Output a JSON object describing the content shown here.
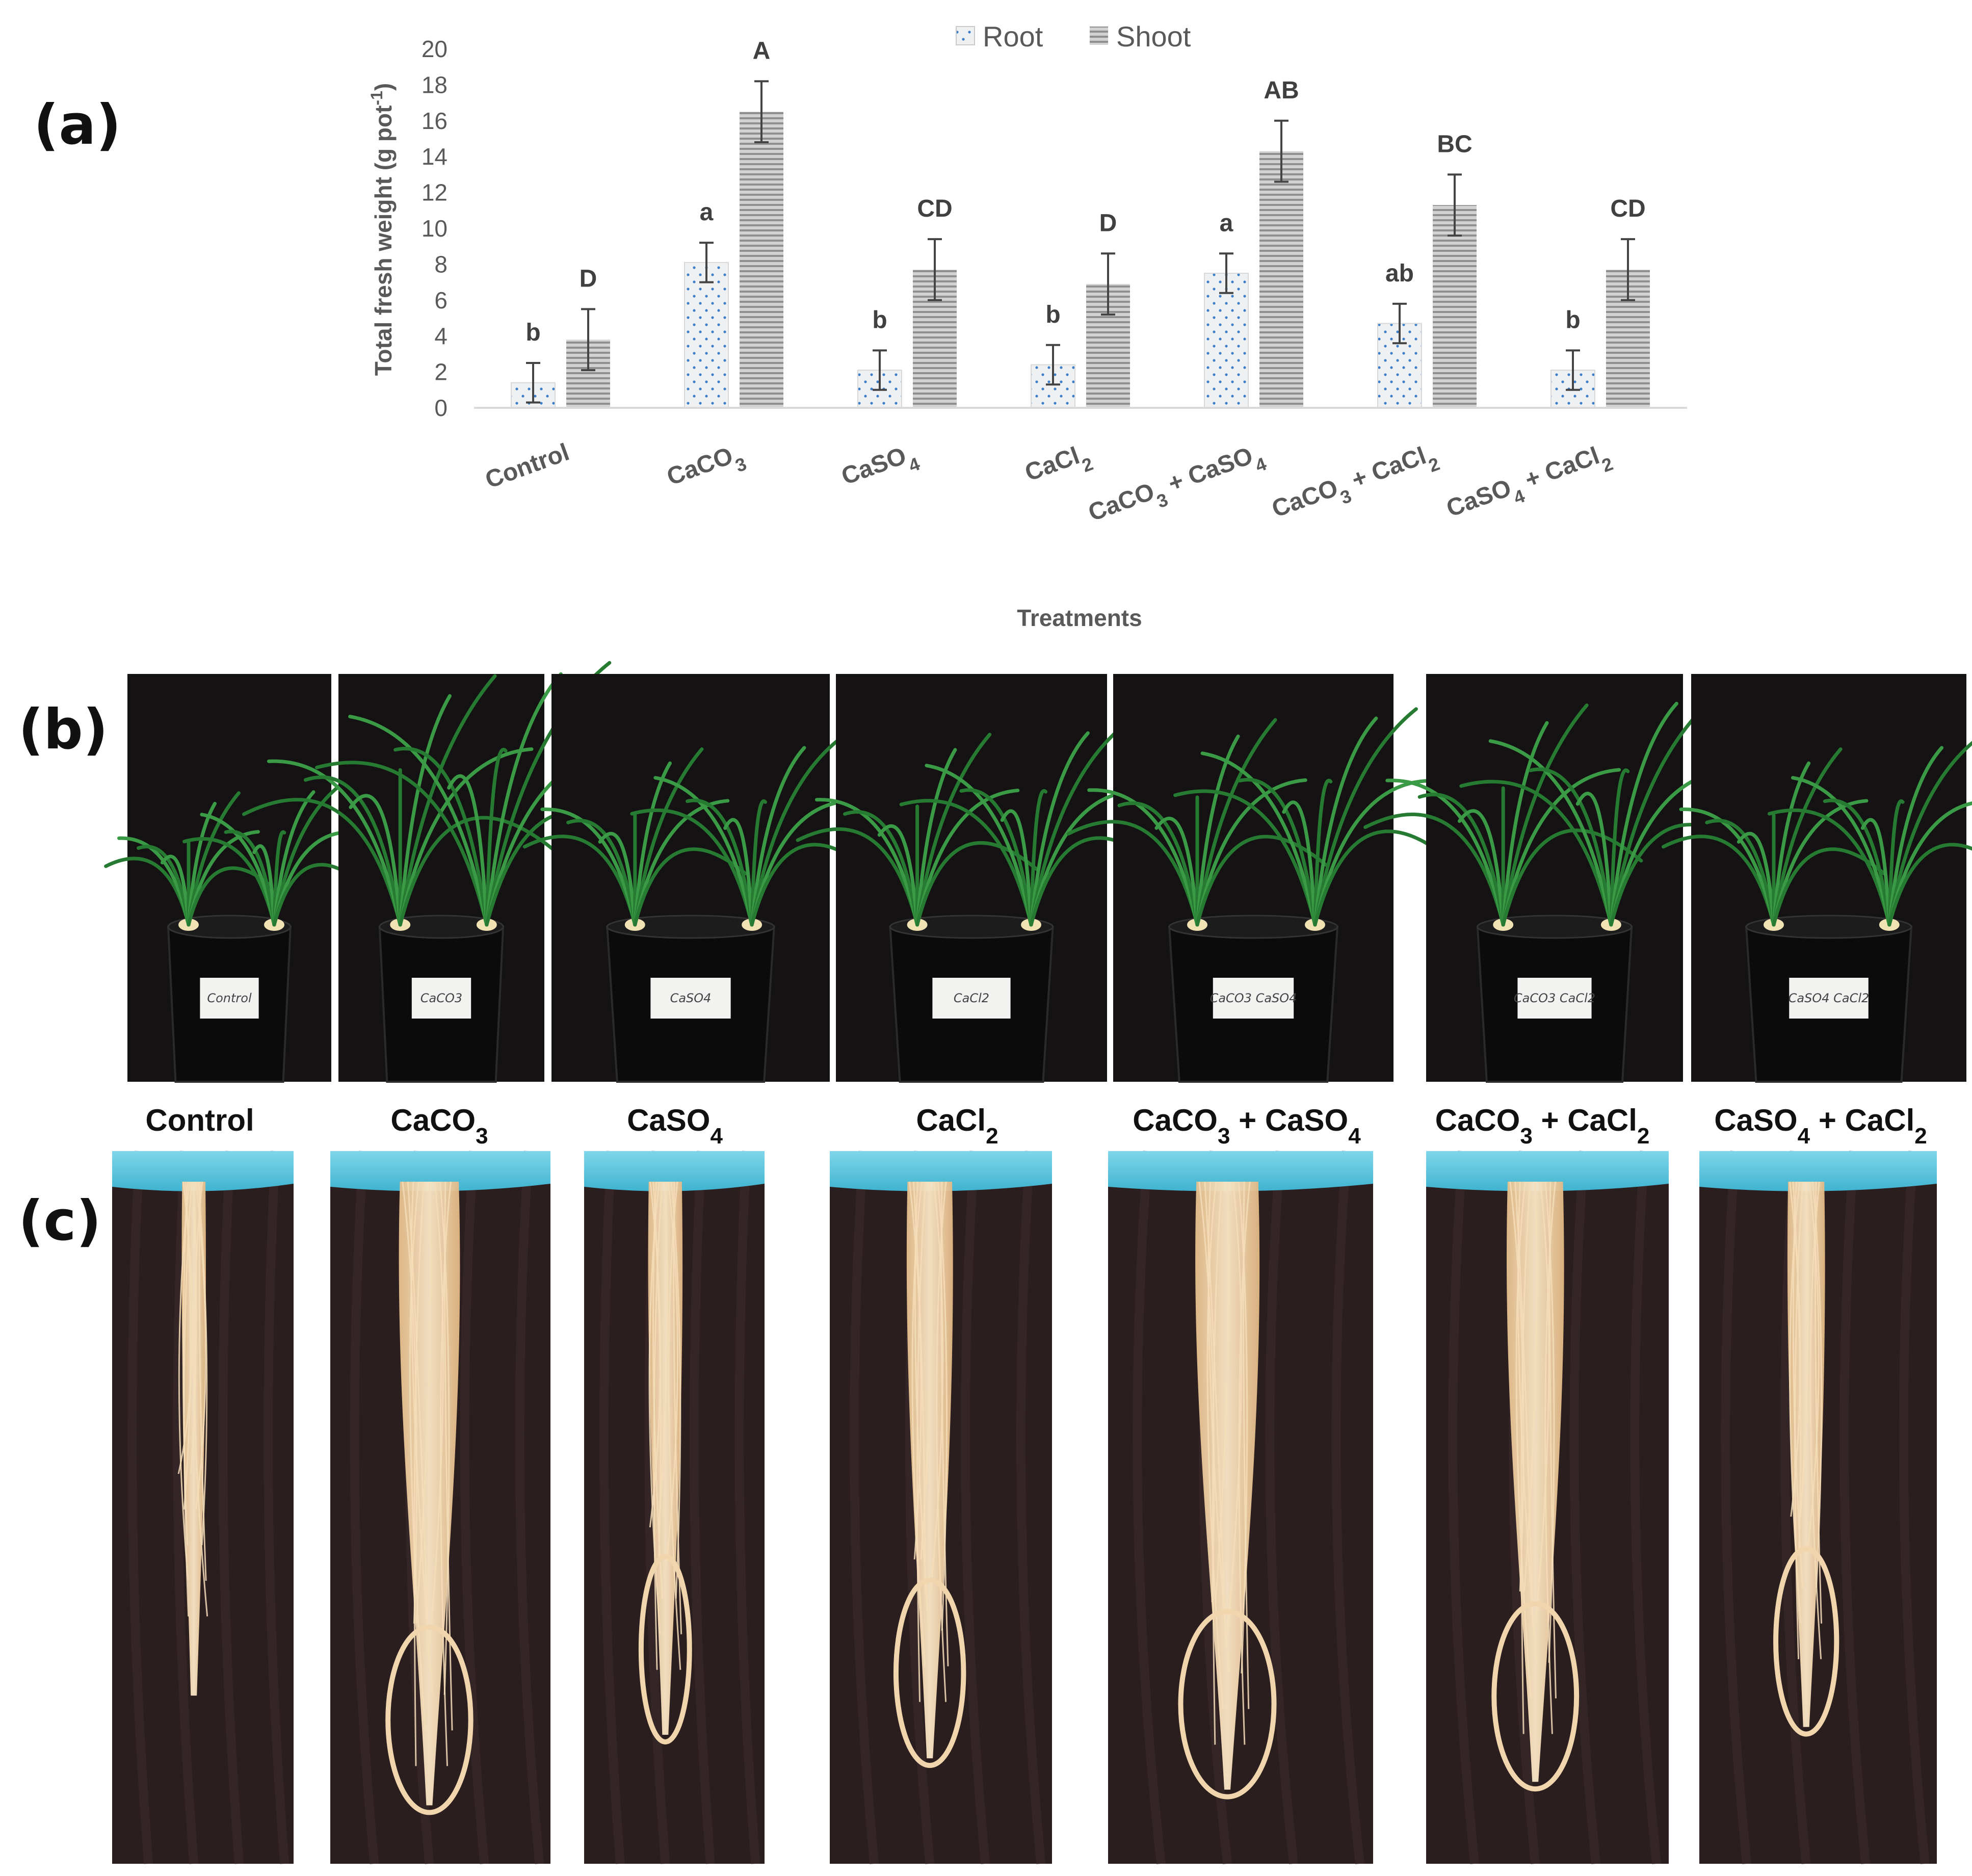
{
  "panels": {
    "a": "(a)",
    "b": "(b)",
    "c": "(c)"
  },
  "legend": {
    "root": "Root",
    "shoot": "Shoot"
  },
  "axis": {
    "ylabel_main": "Total fresh weight (g pot",
    "ylabel_sup": "-1",
    "ylabel_end": ")",
    "xlabel": "Treatments"
  },
  "categories": [
    {
      "base": "Control"
    },
    {
      "base": "CaCO",
      "sub": "3"
    },
    {
      "base": "CaSO",
      "sub": "4"
    },
    {
      "base": "CaCl",
      "sub": "2"
    },
    {
      "base": "CaCO",
      "sub": "3",
      "base2": " + CaSO",
      "sub2": "4"
    },
    {
      "base": "CaCO",
      "sub": "3",
      "base2": " + CaCl",
      "sub2": "2"
    },
    {
      "base": "CaSO",
      "sub": "4",
      "base2": " + CaCl",
      "sub2": "2"
    }
  ],
  "colors": {
    "root_fill": "#eef0f2",
    "root_dots": "#3a7fc8",
    "shoot_fill": "#c8c8c8",
    "shoot_stripe": "#8a8a8a",
    "axis": "#d9d9d9",
    "error_bar": "#444444",
    "photo_bg": "#141212",
    "root_photo_bg": "#2a1d1d",
    "tray_blue": "#5ec8e0",
    "root_color": "#f0d2a6",
    "leaf_green": "#2f8a3a",
    "pot_black": "#0e0e0e"
  },
  "chart_data": {
    "type": "bar",
    "title": "",
    "xlabel": "Treatments",
    "ylabel": "Total fresh weight (g pot-1)",
    "ylim": [
      0,
      20
    ],
    "yticks": [
      0,
      2,
      4,
      6,
      8,
      10,
      12,
      14,
      16,
      18,
      20
    ],
    "legend_position": "top-center",
    "grid": false,
    "categories": [
      "Control",
      "CaCO3",
      "CaSO4",
      "CaCl2",
      "CaCO3 + CaSO4",
      "CaCO3 + CaCl2",
      "CaSO4 + CaCl2"
    ],
    "series": [
      {
        "name": "Root",
        "values": [
          1.4,
          8.1,
          2.1,
          2.4,
          7.5,
          4.7,
          2.1
        ],
        "errors": [
          1.1,
          1.1,
          1.1,
          1.1,
          1.1,
          1.1,
          1.1
        ],
        "letters": [
          "b",
          "a",
          "b",
          "b",
          "a",
          "ab",
          "b"
        ]
      },
      {
        "name": "Shoot",
        "values": [
          3.8,
          16.5,
          7.7,
          6.9,
          14.3,
          11.3,
          7.7
        ],
        "errors": [
          1.7,
          1.7,
          1.7,
          1.7,
          1.7,
          1.7,
          1.7
        ],
        "letters": [
          "D",
          "A",
          "CD",
          "D",
          "AB",
          "BC",
          "CD"
        ]
      }
    ]
  },
  "photos_b": [
    {
      "pot_label": "Control"
    },
    {
      "pot_label": "CaCO3"
    },
    {
      "pot_label": "CaSO4"
    },
    {
      "pot_label": "CaCl2"
    },
    {
      "pot_label": "CaCO3 CaSO4"
    },
    {
      "pot_label": "CaCO3 CaCl2"
    },
    {
      "pot_label": "CaSO4 CaCl2"
    }
  ],
  "root_photos_c": [
    {
      "spread": 0.2
    },
    {
      "spread": 0.9
    },
    {
      "spread": 0.45
    },
    {
      "spread": 0.6
    },
    {
      "spread": 0.8
    },
    {
      "spread": 0.75
    },
    {
      "spread": 0.4
    }
  ]
}
